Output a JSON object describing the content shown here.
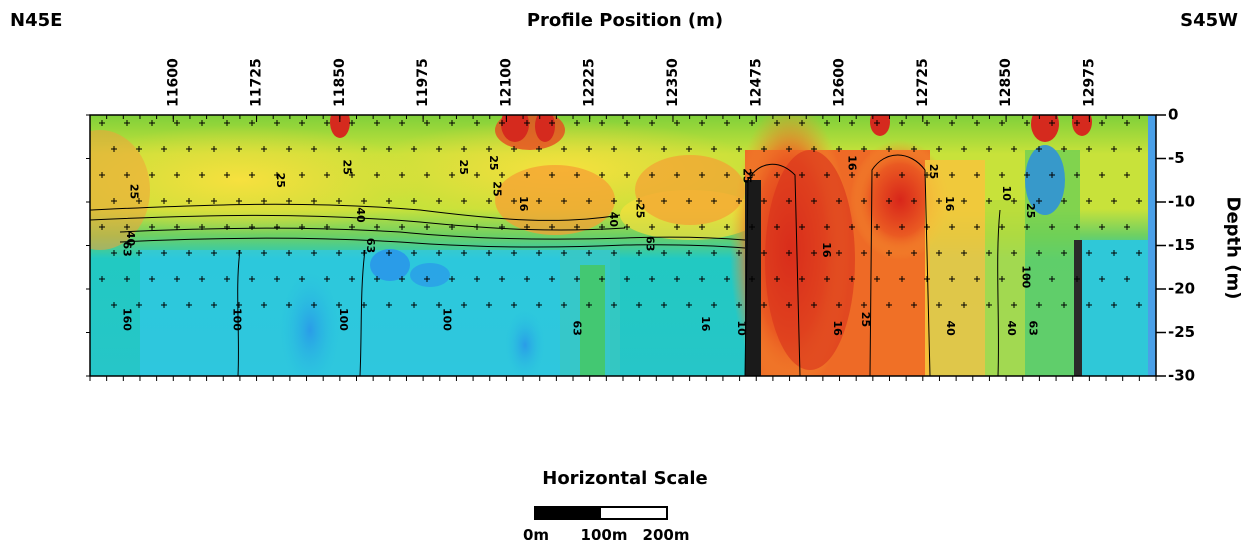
{
  "header": {
    "left_direction": "N45E",
    "right_direction": "S45W"
  },
  "chart_data": {
    "type": "heatmap",
    "title": "Profile Position (m)",
    "xlabel": "",
    "ylabel": "Depth (m)",
    "xlim": [
      11475,
      13075
    ],
    "ylim": [
      -30,
      0
    ],
    "x_ticks": [
      11600,
      11725,
      11850,
      11975,
      12100,
      12225,
      12350,
      12475,
      12600,
      12725,
      12850,
      12975
    ],
    "y_ticks": [
      0,
      -5,
      -10,
      -15,
      -20,
      -25,
      -30
    ],
    "y_tick_labels": [
      "0",
      "-5",
      "-10",
      "-15",
      "-20",
      "-25",
      "-30"
    ],
    "contour_labels": [
      {
        "text": "25",
        "x": 11540,
        "y": -8.8
      },
      {
        "text": "25",
        "x": 11760,
        "y": -7.5
      },
      {
        "text": "25",
        "x": 11860,
        "y": -6
      },
      {
        "text": "40",
        "x": 11880,
        "y": -11.5
      },
      {
        "text": "40",
        "x": 11535,
        "y": -14.2
      },
      {
        "text": "63",
        "x": 11530,
        "y": -15.4
      },
      {
        "text": "63",
        "x": 11895,
        "y": -15
      },
      {
        "text": "25",
        "x": 12035,
        "y": -6
      },
      {
        "text": "25",
        "x": 12080,
        "y": -5.5
      },
      {
        "text": "25",
        "x": 12085,
        "y": -8.5
      },
      {
        "text": "16",
        "x": 12125,
        "y": -10.2
      },
      {
        "text": "40",
        "x": 12260,
        "y": -12
      },
      {
        "text": "25",
        "x": 12300,
        "y": -11
      },
      {
        "text": "63",
        "x": 12315,
        "y": -14.8
      },
      {
        "text": "25",
        "x": 12460,
        "y": -7
      },
      {
        "text": "16",
        "x": 12580,
        "y": -15.5
      },
      {
        "text": "16",
        "x": 12618,
        "y": -5.5
      },
      {
        "text": "25",
        "x": 12740,
        "y": -6.5
      },
      {
        "text": "16",
        "x": 12764,
        "y": -10.2
      },
      {
        "text": "10",
        "x": 12850,
        "y": -9
      },
      {
        "text": "25",
        "x": 12886,
        "y": -11
      },
      {
        "text": "100",
        "x": 12879,
        "y": -18.6
      },
      {
        "text": "160",
        "x": 11530,
        "y": -23.5
      },
      {
        "text": "100",
        "x": 11695,
        "y": -23.5
      },
      {
        "text": "100",
        "x": 11855,
        "y": -23.5
      },
      {
        "text": "100",
        "x": 12010,
        "y": -23.5
      },
      {
        "text": "63",
        "x": 12205,
        "y": -24.5
      },
      {
        "text": "16",
        "x": 12398,
        "y": -24
      },
      {
        "text": "10",
        "x": 12452,
        "y": -24.5
      },
      {
        "text": "16",
        "x": 12596,
        "y": -24.5
      },
      {
        "text": "25",
        "x": 12638,
        "y": -23.5
      },
      {
        "text": "40",
        "x": 12766,
        "y": -24.5
      },
      {
        "text": "40",
        "x": 12857,
        "y": -24.5
      },
      {
        "text": "63",
        "x": 12890,
        "y": -24.5
      }
    ]
  },
  "scale": {
    "title": "Horizontal Scale",
    "labels": [
      "0m",
      "100m",
      "200m"
    ]
  }
}
